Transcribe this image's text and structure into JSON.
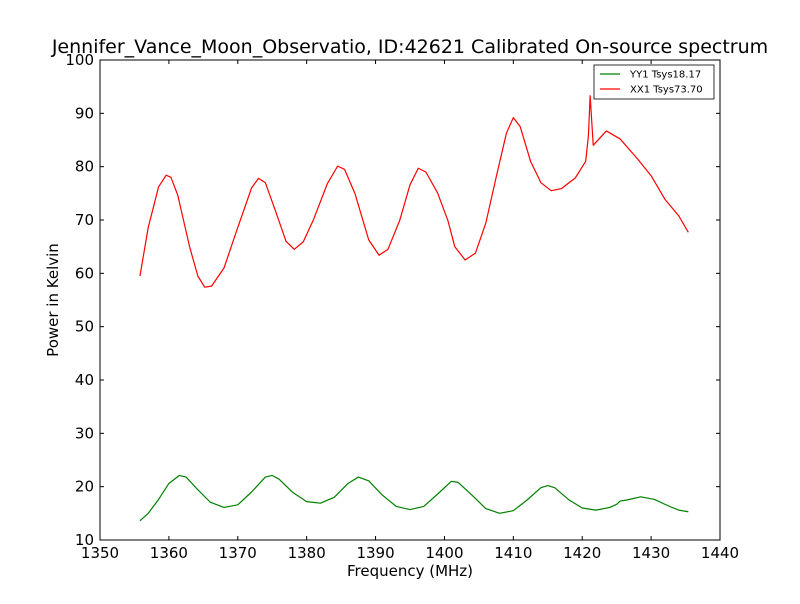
{
  "chart_data": {
    "type": "line",
    "title": "Jennifer_Vance_Moon_Observatio, ID:42621 Calibrated On-source spectrum",
    "xlabel": "Frequency (MHz)",
    "ylabel": "Power in Kelvin",
    "xlim": [
      1350,
      1440
    ],
    "ylim": [
      10,
      100
    ],
    "xticks": [
      "1350",
      "1360",
      "1370",
      "1380",
      "1390",
      "1400",
      "1410",
      "1420",
      "1430",
      "1440"
    ],
    "yticks": [
      "10",
      "20",
      "30",
      "40",
      "50",
      "60",
      "70",
      "80",
      "90",
      "100"
    ],
    "grid": false,
    "legend_position": "top-right",
    "series": [
      {
        "name": "YY1 Tsys18.17",
        "color": "#008000",
        "points": [
          [
            1355.8,
            13.6
          ],
          [
            1357,
            15.0
          ],
          [
            1358.5,
            17.6
          ],
          [
            1360,
            20.6
          ],
          [
            1361.5,
            22.1
          ],
          [
            1362.5,
            21.8
          ],
          [
            1364,
            19.7
          ],
          [
            1366,
            17.1
          ],
          [
            1368,
            16.1
          ],
          [
            1370,
            16.6
          ],
          [
            1372,
            19.0
          ],
          [
            1374,
            21.8
          ],
          [
            1375,
            22.1
          ],
          [
            1376,
            21.4
          ],
          [
            1378,
            18.9
          ],
          [
            1380,
            17.2
          ],
          [
            1382,
            16.9
          ],
          [
            1384,
            18.0
          ],
          [
            1386,
            20.6
          ],
          [
            1387.5,
            21.8
          ],
          [
            1389,
            21.1
          ],
          [
            1391,
            18.4
          ],
          [
            1393,
            16.3
          ],
          [
            1395,
            15.7
          ],
          [
            1397,
            16.3
          ],
          [
            1399,
            18.6
          ],
          [
            1401,
            21.0
          ],
          [
            1402,
            20.8
          ],
          [
            1404,
            18.4
          ],
          [
            1406,
            15.9
          ],
          [
            1408,
            15.0
          ],
          [
            1410,
            15.5
          ],
          [
            1412,
            17.5
          ],
          [
            1414,
            19.8
          ],
          [
            1415,
            20.2
          ],
          [
            1416,
            19.8
          ],
          [
            1418,
            17.6
          ],
          [
            1420,
            16.0
          ],
          [
            1422,
            15.6
          ],
          [
            1424,
            16.1
          ],
          [
            1425,
            16.7
          ],
          [
            1425.5,
            17.3
          ],
          [
            1426.5,
            17.5
          ],
          [
            1428.5,
            18.1
          ],
          [
            1430.5,
            17.6
          ],
          [
            1432.5,
            16.4
          ],
          [
            1434,
            15.6
          ],
          [
            1435.4,
            15.3
          ]
        ]
      },
      {
        "name": "XX1 Tsys73.70",
        "color": "#ff0000",
        "points": [
          [
            1355.8,
            59.5
          ],
          [
            1357,
            68.6
          ],
          [
            1358.5,
            76.2
          ],
          [
            1359.6,
            78.4
          ],
          [
            1360.3,
            78.0
          ],
          [
            1361.3,
            74.6
          ],
          [
            1363,
            65.0
          ],
          [
            1364.2,
            59.5
          ],
          [
            1365.2,
            57.4
          ],
          [
            1366.2,
            57.6
          ],
          [
            1368,
            61.0
          ],
          [
            1370,
            68.6
          ],
          [
            1372,
            76.0
          ],
          [
            1373,
            77.8
          ],
          [
            1374,
            77.0
          ],
          [
            1375.5,
            71.6
          ],
          [
            1377,
            66.0
          ],
          [
            1378.2,
            64.5
          ],
          [
            1379.5,
            65.9
          ],
          [
            1381,
            70.1
          ],
          [
            1383,
            76.8
          ],
          [
            1384.5,
            80.1
          ],
          [
            1385.5,
            79.5
          ],
          [
            1387,
            75.0
          ],
          [
            1389,
            66.3
          ],
          [
            1390.5,
            63.4
          ],
          [
            1391.8,
            64.5
          ],
          [
            1393.5,
            69.9
          ],
          [
            1395,
            76.6
          ],
          [
            1396.2,
            79.7
          ],
          [
            1397.3,
            79.0
          ],
          [
            1399,
            75.1
          ],
          [
            1400.5,
            69.9
          ],
          [
            1401.5,
            65.0
          ],
          [
            1403,
            62.5
          ],
          [
            1404.5,
            63.8
          ],
          [
            1406,
            69.4
          ],
          [
            1407.5,
            78.0
          ],
          [
            1409,
            86.3
          ],
          [
            1410,
            89.2
          ],
          [
            1411,
            87.5
          ],
          [
            1412.5,
            81.0
          ],
          [
            1414,
            77.0
          ],
          [
            1415.5,
            75.5
          ],
          [
            1417,
            75.9
          ],
          [
            1419,
            77.9
          ],
          [
            1420.5,
            81.0
          ],
          [
            1420.9,
            85.8
          ],
          [
            1421.15,
            93.3
          ],
          [
            1421.6,
            84.0
          ],
          [
            1423.5,
            86.7
          ],
          [
            1425.5,
            85.2
          ],
          [
            1428,
            81.5
          ],
          [
            1430,
            78.3
          ],
          [
            1432,
            73.9
          ],
          [
            1434,
            70.8
          ],
          [
            1435.4,
            67.7
          ]
        ]
      }
    ]
  }
}
